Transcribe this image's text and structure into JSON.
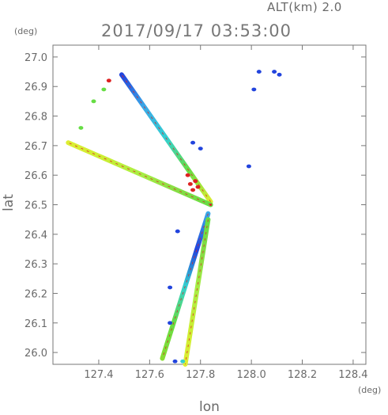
{
  "header": {
    "altitude_label": "ALT(km) 2.0",
    "datetime_label": "2017/09/17 03:53:00"
  },
  "chart_data": {
    "type": "scatter",
    "title": "2017/09/17 03:53:00",
    "subtitle": "ALT(km) 2.0",
    "xlabel": "lon",
    "ylabel": "lat",
    "x_unit": "(deg)",
    "y_unit": "(deg)",
    "xlim": [
      127.22,
      128.45
    ],
    "ylim": [
      25.96,
      27.04
    ],
    "x_ticks": [
      "127.4",
      "127.6",
      "127.8",
      "128.0",
      "128.2",
      "128.4"
    ],
    "y_ticks": [
      "26.0",
      "26.1",
      "26.2",
      "26.3",
      "26.4",
      "26.5",
      "26.6",
      "26.7",
      "26.8",
      "26.9",
      "27.0"
    ],
    "grid": false,
    "legend": "none",
    "radar_origin": [
      127.84,
      26.5
    ],
    "colors": {
      "blue": "#2244dd",
      "lightblue": "#3aa8e8",
      "cyan": "#33d0d0",
      "green": "#66dd44",
      "yellow": "#ddee33",
      "red": "#dd2222"
    },
    "beams": [
      {
        "start": [
          127.84,
          26.51
        ],
        "end": [
          127.49,
          26.94
        ],
        "stops": [
          "#ddee33",
          "#66dd44",
          "#33d0d0",
          "#3aa8e8",
          "#2244dd"
        ]
      },
      {
        "start": [
          127.84,
          26.5
        ],
        "end": [
          127.28,
          26.71
        ],
        "stops": [
          "#66dd44",
          "#88dd44",
          "#aaee44",
          "#ccee33",
          "#ddee33"
        ]
      },
      {
        "start": [
          127.83,
          26.47
        ],
        "end": [
          127.65,
          25.98
        ],
        "stops": [
          "#3aa8e8",
          "#2244dd",
          "#33d0d0",
          "#66dd44",
          "#88dd33"
        ]
      },
      {
        "start": [
          127.83,
          26.45
        ],
        "end": [
          127.74,
          25.96
        ],
        "stops": [
          "#66dd44",
          "#88dd44",
          "#aaee44",
          "#ccee33",
          "#ddee33"
        ]
      }
    ],
    "echo_points": [
      {
        "x": 128.03,
        "y": 26.95,
        "c": "#2244dd"
      },
      {
        "x": 128.09,
        "y": 26.95,
        "c": "#2244dd"
      },
      {
        "x": 128.11,
        "y": 26.94,
        "c": "#2244dd"
      },
      {
        "x": 128.01,
        "y": 26.89,
        "c": "#2244dd"
      },
      {
        "x": 127.99,
        "y": 26.63,
        "c": "#2244dd"
      },
      {
        "x": 127.77,
        "y": 26.71,
        "c": "#2244dd"
      },
      {
        "x": 127.8,
        "y": 26.69,
        "c": "#2244dd"
      },
      {
        "x": 127.71,
        "y": 26.41,
        "c": "#2244dd"
      },
      {
        "x": 127.68,
        "y": 26.22,
        "c": "#2244dd"
      },
      {
        "x": 127.68,
        "y": 26.1,
        "c": "#2244dd"
      },
      {
        "x": 127.76,
        "y": 26.57,
        "c": "#dd2222"
      },
      {
        "x": 127.78,
        "y": 26.58,
        "c": "#dd2222"
      },
      {
        "x": 127.77,
        "y": 26.55,
        "c": "#dd2222"
      },
      {
        "x": 127.75,
        "y": 26.6,
        "c": "#dd2222"
      },
      {
        "x": 127.79,
        "y": 26.56,
        "c": "#dd2222"
      },
      {
        "x": 127.44,
        "y": 26.92,
        "c": "#dd2222"
      },
      {
        "x": 127.38,
        "y": 26.85,
        "c": "#66dd44"
      },
      {
        "x": 127.33,
        "y": 26.76,
        "c": "#66dd44"
      },
      {
        "x": 127.42,
        "y": 26.89,
        "c": "#66dd44"
      },
      {
        "x": 127.73,
        "y": 25.97,
        "c": "#33d0d0"
      },
      {
        "x": 127.7,
        "y": 25.97,
        "c": "#2244dd"
      }
    ]
  }
}
